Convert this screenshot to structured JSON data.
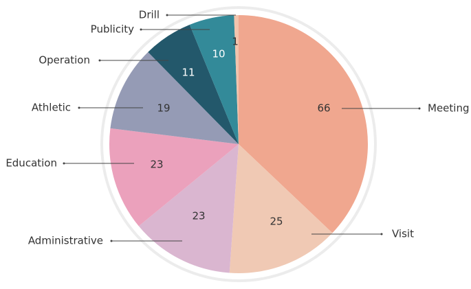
{
  "chart_data": {
    "type": "pie",
    "categories": [
      "Meeting",
      "Visit",
      "Administrative",
      "Education",
      "Athletic",
      "Operation",
      "Publicity",
      "Drill"
    ],
    "values": [
      66,
      25,
      23,
      23,
      19,
      11,
      10,
      1
    ],
    "colors": [
      "#f0a78f",
      "#f0c9b4",
      "#dab6d0",
      "#eba1bc",
      "#959bb5",
      "#23586b",
      "#338a99",
      "#f2c4ad"
    ]
  }
}
